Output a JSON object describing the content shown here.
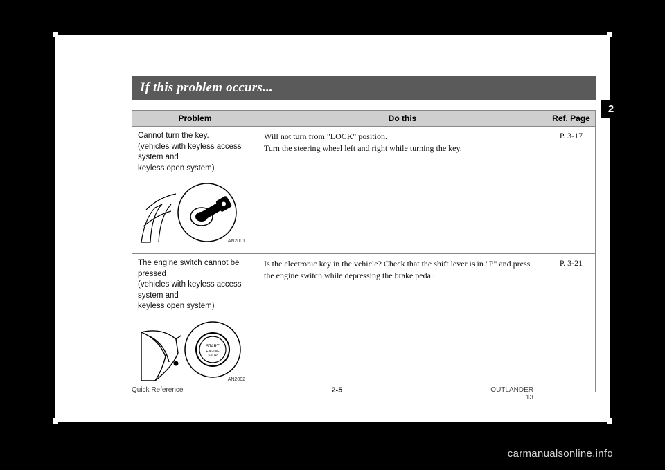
{
  "title": "If this problem occurs...",
  "section_tab": "2",
  "table": {
    "headers": {
      "problem": "Problem",
      "do_this": "Do this",
      "ref": "Ref. Page"
    },
    "rows": [
      {
        "problem_text": "Cannot turn the key.\n(vehicles with keyless access system and\nkeyless open system)",
        "illustration_tag": "AN2001",
        "do_this": "Will not turn from \"LOCK\" position.\nTurn the steering wheel left and right while turning the key.",
        "ref": "P. 3-17"
      },
      {
        "problem_text": "The engine switch cannot be pressed\n(vehicles with keyless access system and\nkeyless open system)",
        "illustration_tag": "AN2002",
        "do_this": "Is the electronic key in the vehicle? Check that the shift lever is in \"P\" and press the engine switch while depressing the brake pedal.",
        "ref": "P. 3-21"
      }
    ]
  },
  "footer": {
    "left": "Quick Reference",
    "page": "2-5",
    "right_line1": "OUTLANDER",
    "right_line2": "13"
  },
  "watermark": "carmanualsonline.info",
  "colors": {
    "titlebar_bg": "#5a5a5a",
    "header_bg": "#cfcfcf",
    "border": "#888888",
    "page_bg": "#ffffff",
    "stage_bg": "#000000",
    "watermark": "#d6d6d6"
  }
}
